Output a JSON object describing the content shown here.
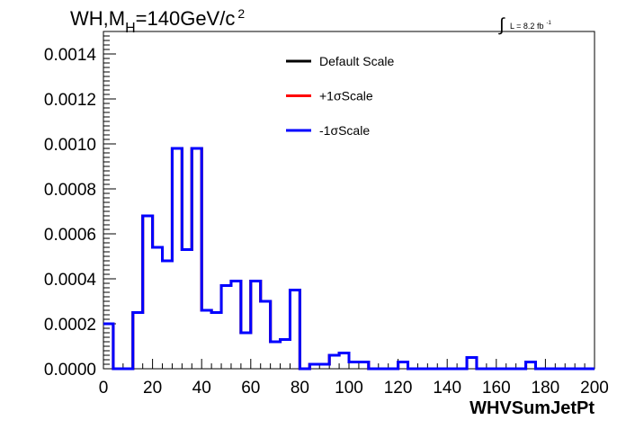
{
  "chart_data": {
    "type": "line",
    "title": "WH,M",
    "title_sub": "H",
    "title_rest": "=140GeV/c",
    "title_sup": "2",
    "lumi_integral": "∫",
    "lumi_text": "L = 8.2 fb",
    "lumi_sup": "-1",
    "xlabel": "WHVSumJetPt",
    "ylabel": "",
    "xlim": [
      0,
      200
    ],
    "ylim": [
      0,
      0.0015
    ],
    "xticks": [
      "0",
      "20",
      "40",
      "60",
      "80",
      "100",
      "120",
      "140",
      "160",
      "180",
      "200"
    ],
    "yticks": [
      "0.0000",
      "0.0002",
      "0.0004",
      "0.0006",
      "0.0008",
      "0.0010",
      "0.0012",
      "0.0014"
    ],
    "bin_edges": [
      0,
      4,
      8,
      12,
      16,
      20,
      24,
      28,
      32,
      36,
      40,
      44,
      48,
      52,
      56,
      60,
      64,
      68,
      72,
      76,
      80,
      84,
      88,
      92,
      96,
      100,
      104,
      108,
      112,
      116,
      120,
      124,
      128,
      132,
      136,
      140,
      144,
      148,
      152,
      156,
      160,
      164,
      168,
      172,
      176,
      180,
      184,
      188,
      192,
      196,
      200
    ],
    "series": [
      {
        "name": "Default Scale",
        "color": "#000000",
        "values": [
          0.0002,
          0.0,
          0.0,
          0.00025,
          0.00068,
          0.00054,
          0.00048,
          0.00098,
          0.00053,
          0.00098,
          0.00026,
          0.00025,
          0.00037,
          0.00039,
          0.00016,
          0.00039,
          0.0003,
          0.00012,
          0.00013,
          0.00035,
          0.0,
          2e-05,
          2e-05,
          6e-05,
          7e-05,
          3e-05,
          3e-05,
          0.0,
          0.0,
          0.0,
          3e-05,
          0.0,
          0.0,
          0.0,
          0.0,
          0.0,
          0.0,
          5e-05,
          0.0,
          0.0,
          0.0,
          0.0,
          0.0,
          3e-05,
          0.0,
          0.0,
          0.0,
          0.0,
          0.0,
          0.0
        ]
      },
      {
        "name": "+1σScale",
        "color": "#ff0000",
        "values": [
          0.0002,
          0.0,
          0.0,
          0.00025,
          0.00068,
          0.00054,
          0.00048,
          0.00098,
          0.00053,
          0.00098,
          0.00026,
          0.00025,
          0.00037,
          0.00039,
          0.00016,
          0.00039,
          0.0003,
          0.00012,
          0.00013,
          0.00035,
          0.0,
          2e-05,
          2e-05,
          6e-05,
          7e-05,
          3e-05,
          3e-05,
          0.0,
          0.0,
          0.0,
          3e-05,
          0.0,
          0.0,
          0.0,
          0.0,
          0.0,
          0.0,
          5e-05,
          0.0,
          0.0,
          0.0,
          0.0,
          0.0,
          3e-05,
          0.0,
          0.0,
          0.0,
          0.0,
          0.0,
          0.0
        ]
      },
      {
        "name": "-1σScale",
        "color": "#0000ff",
        "values": [
          0.0002,
          0.0,
          0.0,
          0.00025,
          0.00068,
          0.00054,
          0.00048,
          0.00098,
          0.00053,
          0.00098,
          0.00026,
          0.00025,
          0.00037,
          0.00039,
          0.00016,
          0.00039,
          0.0003,
          0.00012,
          0.00013,
          0.00035,
          0.0,
          2e-05,
          2e-05,
          6e-05,
          7e-05,
          3e-05,
          3e-05,
          0.0,
          0.0,
          0.0,
          3e-05,
          0.0,
          0.0,
          0.0,
          0.0,
          0.0,
          0.0,
          5e-05,
          0.0,
          0.0,
          0.0,
          0.0,
          0.0,
          3e-05,
          0.0,
          0.0,
          0.0,
          0.0,
          0.0,
          0.0
        ]
      }
    ],
    "legend_position": "top-center",
    "grid": false
  }
}
